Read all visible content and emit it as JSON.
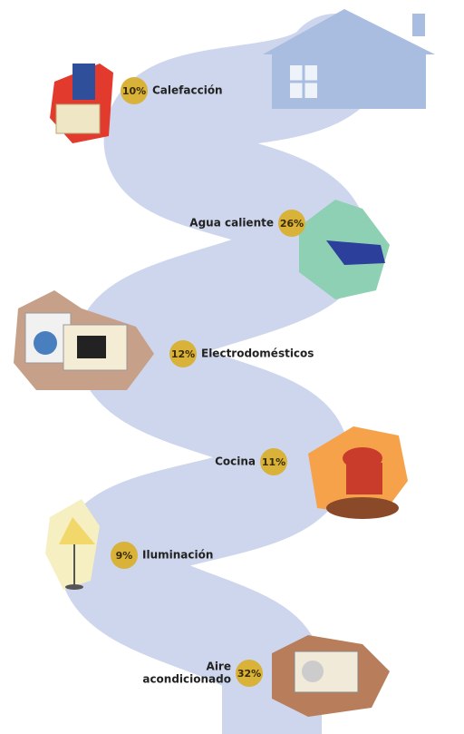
{
  "items": [
    {
      "label": "Calefacción",
      "percent": "10%"
    },
    {
      "label": "Agua caliente",
      "percent": "26%"
    },
    {
      "label": "Electrodomésticos",
      "percent": "12%"
    },
    {
      "label": "Cocina",
      "percent": "11%"
    },
    {
      "label": "Iluminación",
      "percent": "9%"
    },
    {
      "label": [
        "Aire",
        "acondicionado"
      ],
      "percent": "32%"
    }
  ]
}
